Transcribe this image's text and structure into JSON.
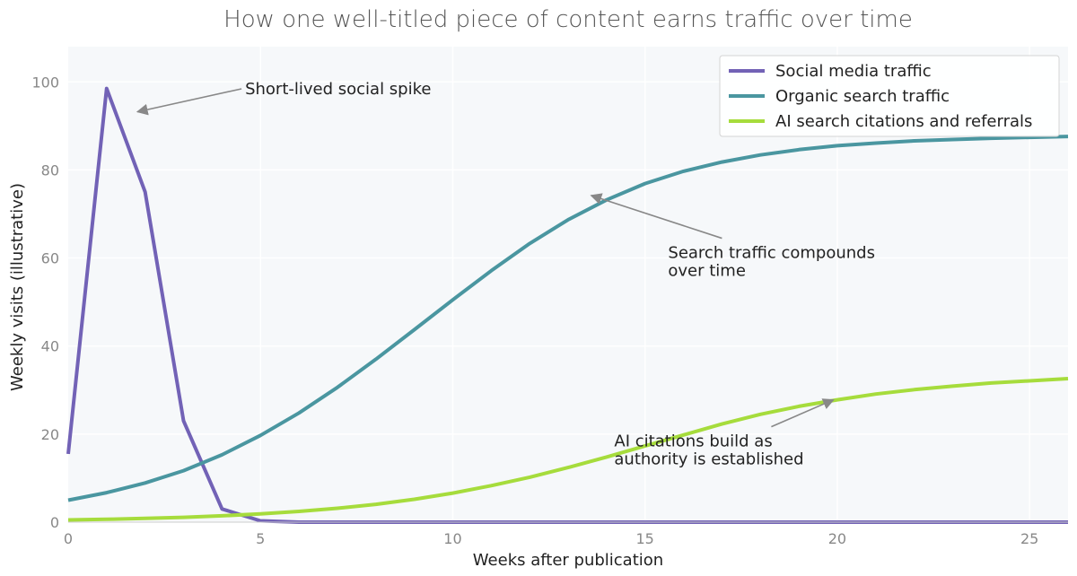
{
  "chart_data": {
    "type": "line",
    "title": "How one well-titled piece of content earns traffic over time",
    "xlabel": "Weeks after publication",
    "ylabel": "Weekly visits (illustrative)",
    "xlim": [
      0,
      26
    ],
    "ylim": [
      0,
      108
    ],
    "xticks": [
      0,
      5,
      10,
      15,
      20,
      25
    ],
    "yticks": [
      0,
      20,
      40,
      60,
      80,
      100
    ],
    "grid": true,
    "legend_position": "top-right",
    "x": [
      0,
      1,
      2,
      3,
      4,
      5,
      6,
      7,
      8,
      9,
      10,
      11,
      12,
      13,
      14,
      15,
      16,
      17,
      18,
      19,
      20,
      21,
      22,
      23,
      24,
      25,
      26
    ],
    "series": [
      {
        "name": "Social media traffic",
        "color": "#7262b6",
        "values": [
          15.5,
          98.5,
          75,
          23,
          3,
          0.3,
          0,
          0,
          0,
          0,
          0,
          0,
          0,
          0,
          0,
          0,
          0,
          0,
          0,
          0,
          0,
          0,
          0,
          0,
          0,
          0,
          0
        ]
      },
      {
        "name": "Organic search traffic",
        "color": "#4a96a0",
        "values": [
          5,
          6.7,
          8.9,
          11.7,
          15.3,
          19.7,
          24.8,
          30.6,
          37,
          43.7,
          50.5,
          57.1,
          63.3,
          68.7,
          73.2,
          76.9,
          79.7,
          81.8,
          83.4,
          84.6,
          85.5,
          86.1,
          86.6,
          86.9,
          87.2,
          87.4,
          87.6
        ]
      },
      {
        "name": "AI search citations and referrals",
        "color": "#a6dc3c",
        "values": [
          0.5,
          0.65,
          0.85,
          1.1,
          1.45,
          1.9,
          2.45,
          3.15,
          4.05,
          5.2,
          6.6,
          8.3,
          10.2,
          12.4,
          14.8,
          17.3,
          19.8,
          22.3,
          24.5,
          26.3,
          27.8,
          29.1,
          30.1,
          30.9,
          31.6,
          32.1,
          32.6
        ]
      }
    ],
    "annotations": [
      {
        "lines": [
          "Short-lived social spike"
        ],
        "target": [
          1.8,
          93.2
        ],
        "text_at": [
          4.6,
          97.2
        ]
      },
      {
        "lines": [
          "Search traffic compounds",
          "over time"
        ],
        "target": [
          13.6,
          74.2
        ],
        "text_at": [
          15.6,
          60
        ]
      },
      {
        "lines": [
          "AI citations build as",
          "authority is established"
        ],
        "target": [
          19.9,
          27.8
        ],
        "text_at": [
          14.2,
          17.2
        ]
      }
    ]
  }
}
